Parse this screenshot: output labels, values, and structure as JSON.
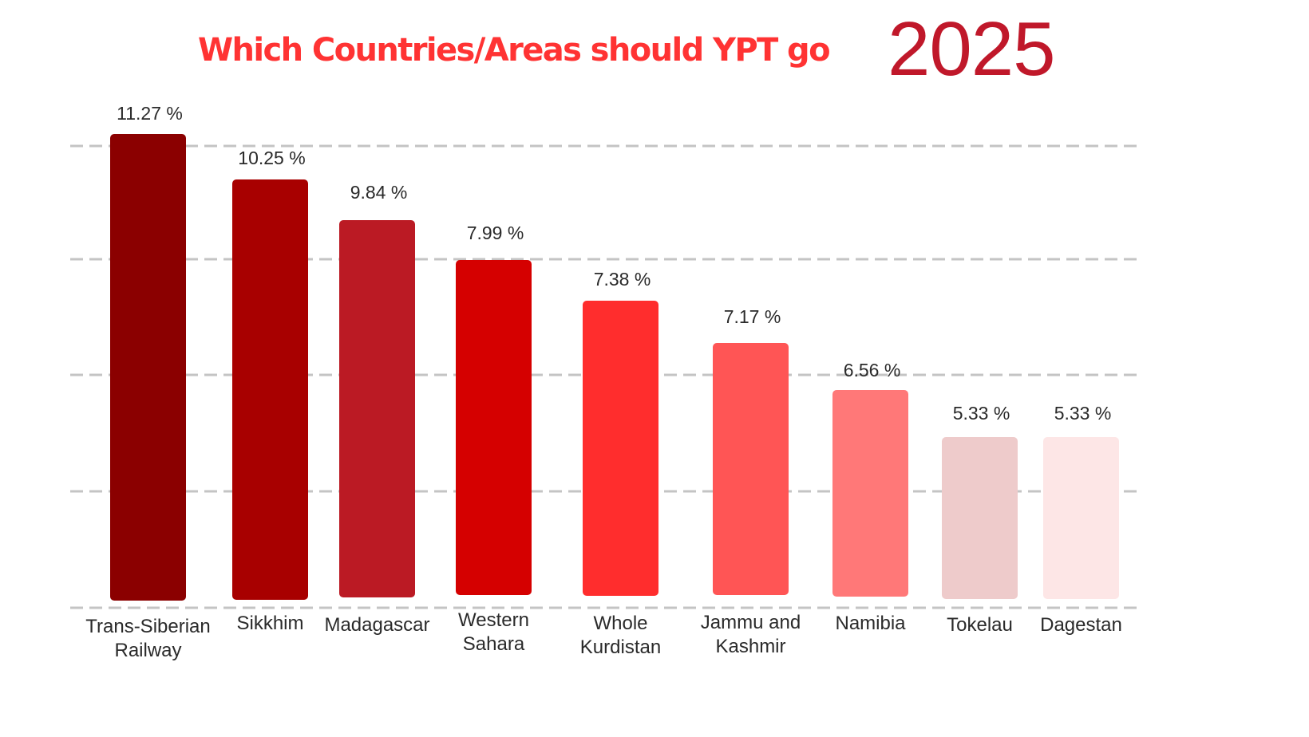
{
  "title": {
    "text": "Which Countries/Areas should YPT go",
    "year": "2025"
  },
  "chart_data": {
    "type": "bar",
    "title": "Which Countries/Areas should YPT go 2025",
    "xlabel": "",
    "ylabel": "",
    "unit": "%",
    "grid": true,
    "categories": [
      [
        "Trans-Siberian",
        "Railway"
      ],
      [
        "Sikkhim"
      ],
      [
        "Madagascar"
      ],
      [
        "Western",
        "Sahara"
      ],
      [
        "Whole",
        "Kurdistan"
      ],
      [
        "Jammu and",
        "Kashmir"
      ],
      [
        "Namibia"
      ],
      [
        "Tokelau"
      ],
      [
        "Dagestan"
      ]
    ],
    "values": [
      11.27,
      10.25,
      9.84,
      7.99,
      7.38,
      7.17,
      6.56,
      5.33,
      5.33
    ],
    "value_labels": [
      "11.27 %",
      "10.25 %",
      "9.84 %",
      "7.99 %",
      "7.38 %",
      "7.17 %",
      "6.56 %",
      "5.33 %",
      "5.33 %"
    ],
    "colors": [
      "#8b0000",
      "#a80000",
      "#bb1a24",
      "#d50000",
      "#ff2d2d",
      "#ff5555",
      "#ff7878",
      "#eecbcb",
      "#fde6e6"
    ]
  }
}
